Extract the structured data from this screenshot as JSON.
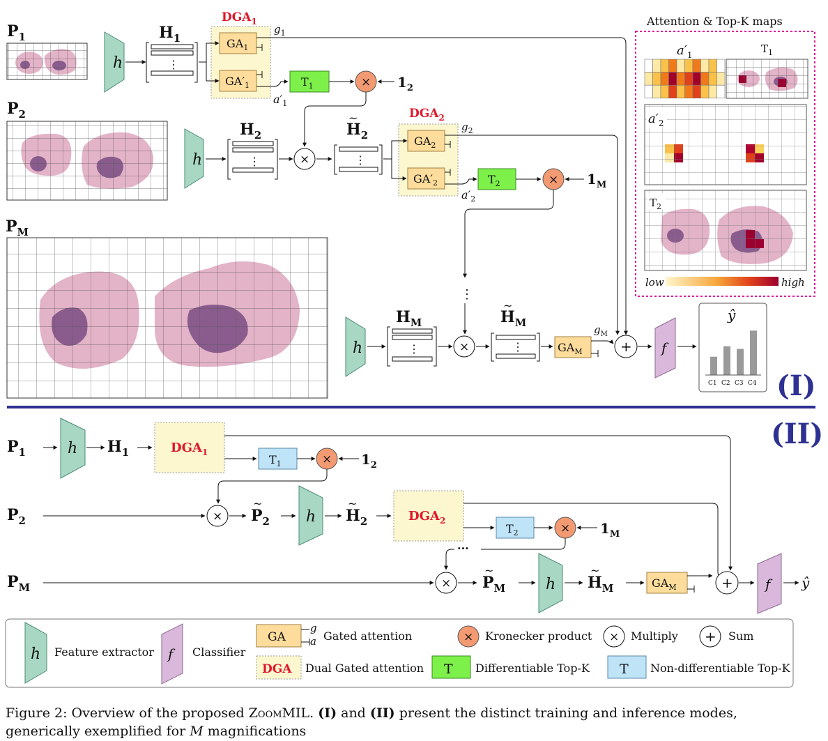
{
  "section_labels": {
    "training": "(I)",
    "inference": "(II)"
  },
  "inputs": {
    "p1": "P",
    "p1_sub": "1",
    "p2": "P",
    "p2_sub": "2",
    "pm": "P",
    "pm_sub": "M"
  },
  "features": {
    "h1": "H",
    "h1_sub": "1",
    "h2": "H",
    "h2_sub": "2",
    "hm": "H",
    "hm_sub": "M",
    "p2t": "P",
    "pmt": "P"
  },
  "blocks": {
    "h": "h",
    "f": "f",
    "dga1": "DGA",
    "dga1_sub": "1",
    "dga2": "DGA",
    "dga2_sub": "2",
    "ga1": "GA",
    "ga1_sub": "1",
    "ga1p": "GA",
    "ga1p_sub": "1",
    "ga2": "GA",
    "ga2_sub": "2",
    "ga2p": "GA",
    "ga2p_sub": "2",
    "gam": "GA",
    "gam_sub": "M",
    "t1": "T",
    "t1_sub": "1",
    "t2": "T",
    "t2_sub": "2",
    "g1": "g",
    "g1_sub": "1",
    "g2": "g",
    "g2_sub": "2",
    "gm": "g",
    "gm_sub": "M",
    "a1": "a",
    "a1_sub": "1",
    "a2": "a",
    "a2_sub": "2",
    "one2": "1",
    "one2_sub": "2",
    "onem": "1",
    "onem_sub": "M",
    "times": "×",
    "plus": "+",
    "vdots": "⋮",
    "hdots": "···",
    "yhat": "ŷ"
  },
  "attention_panel": {
    "title": "Attention & Top-K maps",
    "a1_label": "a",
    "a1_sub": "1",
    "t1_label": "T",
    "t1_sub": "1",
    "a2_label": "a",
    "a2_sub": "2",
    "t2_label": "T",
    "t2_sub": "2",
    "low": "low",
    "high": "high",
    "colors": {
      "low": "#fff3c4",
      "mid": "#f07a1a",
      "high": "#a0002a",
      "border": "#e0179a"
    }
  },
  "output_chart": {
    "categories": [
      "C1",
      "C2",
      "C3",
      "C4"
    ],
    "values": [
      0.35,
      0.55,
      0.5,
      0.85
    ]
  },
  "legend": {
    "h_label": "h",
    "h_text": "Feature extractor",
    "f_label": "f",
    "f_text": "Classifier",
    "ga_label": "GA",
    "ga_g": "g",
    "ga_a": "a",
    "ga_text": "Gated attention",
    "dga_label": "DGA",
    "dga_text": "Dual Gated attention",
    "kron_text": "Kronecker product",
    "mult_text": "Multiply",
    "sum_text": "Sum",
    "t_label": "T",
    "dtopk_text": "Differentiable Top-K",
    "ndtopk_text": "Non-differentiable Top-K"
  },
  "colors": {
    "extractor": "#a8d8c4",
    "classifier": "#dab8dc",
    "ga": "#fddc9c",
    "dga_fill": "#fdf7cf",
    "dga_text": "#e0172a",
    "topk_diff": "#7ef04a",
    "topk_nondiff": "#bfe3f7",
    "kron": "#f39a72",
    "divider": "#2e3192",
    "tissue": "#dca8c0",
    "tissue_dark": "#8a5c8e"
  },
  "caption": {
    "prefix": "Figure 2:  Overview of the proposed ",
    "name": "ZoomMIL",
    "mid1": ".  ",
    "i": "(I)",
    "mid2": " and ",
    "ii": "(II)",
    "rest": " present the distinct training and inference modes,",
    "line2_prefix": "generically exemplified for ",
    "m": "M",
    "line2_suffix": " magnifications"
  }
}
